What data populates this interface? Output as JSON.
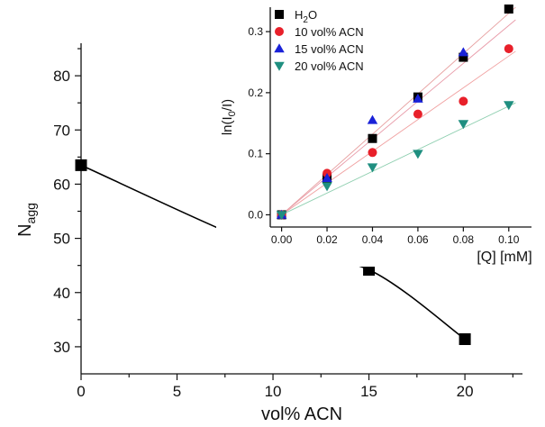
{
  "chart_data": [
    {
      "id": "main",
      "type": "line",
      "xlabel": "vol% ACN",
      "ylabel": {
        "main": "N",
        "sub": "agg"
      },
      "xlim": [
        0,
        23
      ],
      "ylim": [
        25,
        86
      ],
      "xticks": [
        0,
        5,
        10,
        15,
        20
      ],
      "yticks": [
        30,
        40,
        50,
        60,
        70,
        80
      ],
      "grid": false,
      "series": [
        {
          "x": [
            0,
            10,
            15,
            20
          ],
          "values": [
            63.5,
            47.7,
            44.2,
            31.4
          ],
          "marker": "square",
          "color": "#000000",
          "curve": "smooth"
        }
      ]
    },
    {
      "id": "inset",
      "type": "scatter",
      "xlabel": "[Q] [mM]",
      "ylabel": "ln(I0/I)",
      "xlim": [
        -0.005,
        0.11
      ],
      "ylim": [
        -0.02,
        0.34
      ],
      "xticks": [
        "0.00",
        "0.02",
        "0.04",
        "0.06",
        "0.08",
        "0.10"
      ],
      "yticks": [
        "0.0",
        "0.1",
        "0.2",
        "0.3"
      ],
      "grid": false,
      "legend_position": "top-left",
      "series": [
        {
          "name": "H2O",
          "marker": "square",
          "color": "#000000",
          "fit_color": "#e7a0a0",
          "x": [
            0.0,
            0.02,
            0.04,
            0.06,
            0.08,
            0.1
          ],
          "values": [
            0.0,
            0.06,
            0.125,
            0.193,
            0.258,
            0.337
          ],
          "fit_slope": 3.3
        },
        {
          "name": "10 vol% ACN",
          "marker": "circle",
          "color": "#e8202a",
          "fit_color": "#f0a0a0",
          "x": [
            0.0,
            0.02,
            0.04,
            0.06,
            0.08,
            0.1
          ],
          "values": [
            0.0,
            0.068,
            0.102,
            0.165,
            0.186,
            0.272
          ],
          "fit_slope": 2.6
        },
        {
          "name": "15 vol% ACN",
          "marker": "triangle-up",
          "color": "#1a22d8",
          "fit_color": "#e89aa8",
          "x": [
            0.0,
            0.02,
            0.04,
            0.06,
            0.08
          ],
          "values": [
            0.0,
            0.06,
            0.155,
            0.19,
            0.266
          ],
          "fit_slope": 3.1
        },
        {
          "name": "20 vol% ACN",
          "marker": "triangle-down",
          "color": "#1f8f80",
          "fit_color": "#8fcfb0",
          "x": [
            0.0,
            0.02,
            0.04,
            0.06,
            0.08,
            0.1
          ],
          "values": [
            0.0,
            0.047,
            0.078,
            0.1,
            0.149,
            0.18
          ],
          "fit_slope": 1.78
        }
      ]
    }
  ]
}
